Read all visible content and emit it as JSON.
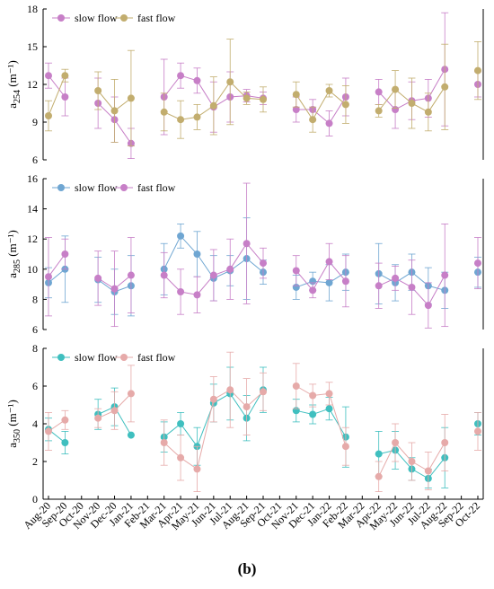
{
  "caption": "(b)",
  "chart_data": {
    "type": "line",
    "x_categories": [
      "Aug-20",
      "Sep-20",
      "Oct-20",
      "Nov-20",
      "Dec-20",
      "Jan-21",
      "Feb-21",
      "Mar-21",
      "Apr-21",
      "May-21",
      "Jun-21",
      "Jul-21",
      "Aug-21",
      "Sep-21",
      "Oct-21",
      "Nov-21",
      "Dec-21",
      "Jan-22",
      "Feb-22",
      "Mar-22",
      "Apr-22",
      "May-22",
      "Jun-22",
      "Jul-22",
      "Aug-22",
      "Sep-22",
      "Oct-22"
    ],
    "panels": [
      {
        "ylabel": "a",
        "ylabel_sub": "254",
        "ylabel_unit": " (m⁻¹)",
        "ylim": [
          6,
          18
        ],
        "yticks": [
          6,
          9,
          12,
          15,
          18
        ],
        "legend": "top-left",
        "series": [
          {
            "name": "slow flow",
            "color": "#c77fc7",
            "values": [
              12.7,
              11.0,
              null,
              10.5,
              9.2,
              7.3,
              null,
              11.0,
              12.7,
              12.3,
              10.2,
              11.0,
              11.1,
              10.9,
              null,
              10.0,
              10.0,
              8.9,
              11.0,
              null,
              11.4,
              10.0,
              10.7,
              10.9,
              13.2,
              null,
              12.0
            ],
            "errors": [
              1.0,
              1.5,
              null,
              2.0,
              1.8,
              1.2,
              null,
              3.0,
              1.0,
              1.0,
              2.0,
              2.0,
              0.5,
              0.5,
              null,
              1.0,
              0.8,
              1.0,
              1.5,
              null,
              1.0,
              1.5,
              1.5,
              1.5,
              4.5,
              null,
              1.0
            ]
          },
          {
            "name": "fast flow",
            "color": "#c2ad6e",
            "values": [
              9.5,
              12.7,
              null,
              11.5,
              9.9,
              10.9,
              null,
              9.8,
              9.2,
              9.4,
              10.3,
              12.2,
              10.9,
              10.8,
              null,
              11.2,
              9.2,
              11.5,
              10.4,
              null,
              9.9,
              11.6,
              10.5,
              9.8,
              11.8,
              null,
              13.1
            ],
            "errors": [
              1.2,
              0.5,
              null,
              1.5,
              2.5,
              3.8,
              null,
              1.5,
              1.5,
              1.0,
              2.3,
              3.4,
              0.5,
              1.0,
              null,
              1.0,
              1.0,
              0.5,
              1.5,
              null,
              0.5,
              1.5,
              2.0,
              1.5,
              3.4,
              null,
              2.3
            ]
          }
        ]
      },
      {
        "ylabel": "a",
        "ylabel_sub": "285",
        "ylabel_unit": " (m⁻¹)",
        "ylim": [
          6,
          16
        ],
        "yticks": [
          6,
          8,
          10,
          12,
          14,
          16
        ],
        "legend": "top-left",
        "series": [
          {
            "name": "slow flow",
            "color": "#6fa6d2",
            "values": [
              9.1,
              10.0,
              null,
              9.3,
              8.5,
              8.9,
              null,
              10.0,
              12.2,
              11.0,
              9.4,
              9.9,
              10.7,
              9.8,
              null,
              8.8,
              9.2,
              9.1,
              9.8,
              null,
              9.7,
              9.1,
              9.8,
              8.9,
              8.6,
              null,
              9.8
            ],
            "errors": [
              1.0,
              2.2,
              null,
              1.5,
              1.5,
              2.0,
              null,
              1.7,
              0.8,
              1.5,
              1.5,
              1.0,
              2.7,
              0.8,
              null,
              0.8,
              0.6,
              1.2,
              1.2,
              null,
              2.0,
              1.2,
              1.2,
              1.2,
              1.2,
              null,
              1.0
            ]
          },
          {
            "name": "fast flow",
            "color": "#c77fc7",
            "values": [
              9.5,
              11.0,
              null,
              9.4,
              8.7,
              9.6,
              null,
              9.6,
              8.5,
              8.3,
              9.6,
              10.0,
              11.7,
              10.4,
              null,
              9.9,
              8.6,
              10.5,
              9.2,
              null,
              8.9,
              9.4,
              8.8,
              7.6,
              9.6,
              null,
              10.4
            ],
            "errors": [
              2.6,
              1.0,
              null,
              1.8,
              2.5,
              2.5,
              null,
              1.5,
              1.5,
              1.2,
              1.7,
              2.0,
              4.0,
              1.0,
              null,
              1.0,
              0.5,
              1.2,
              1.7,
              null,
              1.5,
              0.8,
              1.8,
              1.5,
              3.4,
              null,
              1.7
            ]
          }
        ]
      },
      {
        "ylabel": "a",
        "ylabel_sub": "350",
        "ylabel_unit": " (m⁻¹)",
        "ylim": [
          0,
          8
        ],
        "yticks": [
          0,
          2,
          4,
          6,
          8
        ],
        "legend": "top-left",
        "series": [
          {
            "name": "slow flow",
            "color": "#3fbfbf",
            "values": [
              3.7,
              3.0,
              null,
              4.5,
              4.9,
              3.4,
              null,
              3.3,
              4.0,
              2.8,
              5.1,
              5.6,
              4.3,
              5.8,
              null,
              4.7,
              4.5,
              4.8,
              3.3,
              null,
              2.4,
              2.6,
              1.6,
              1.1,
              2.2,
              null,
              4.0
            ],
            "errors": [
              0.6,
              0.6,
              null,
              0.8,
              1.0,
              null,
              null,
              0.8,
              0.6,
              1.0,
              1.0,
              1.4,
              1.2,
              1.2,
              null,
              0.6,
              0.5,
              0.6,
              1.6,
              null,
              1.2,
              1.0,
              0.6,
              0.5,
              1.6,
              null,
              0.6
            ]
          },
          {
            "name": "fast flow",
            "color": "#e6aaa9",
            "values": [
              3.6,
              4.2,
              null,
              4.3,
              4.7,
              5.6,
              null,
              3.0,
              2.2,
              1.6,
              5.3,
              5.8,
              4.9,
              5.7,
              null,
              6.0,
              5.5,
              5.6,
              2.8,
              null,
              1.2,
              3.0,
              2.0,
              1.5,
              3.0,
              null,
              3.6
            ],
            "errors": [
              1.0,
              0.5,
              null,
              0.5,
              1.0,
              1.5,
              null,
              1.2,
              1.2,
              1.2,
              1.2,
              2.0,
              1.5,
              1.0,
              null,
              1.2,
              0.6,
              0.6,
              1.0,
              null,
              0.8,
              1.0,
              1.0,
              1.0,
              1.5,
              null,
              1.0
            ]
          }
        ]
      }
    ]
  }
}
